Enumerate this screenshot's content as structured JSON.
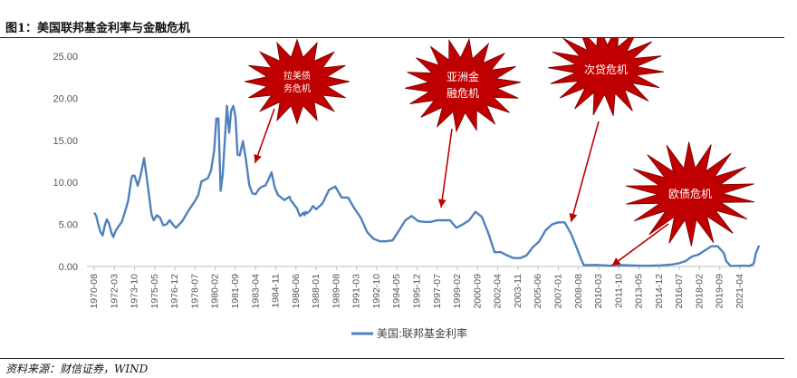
{
  "figure": {
    "title": "图1：美国联邦基金利率与金融危机",
    "source": "资料来源：财信证券，WIND"
  },
  "chart_data": {
    "type": "line",
    "title": "",
    "xlabel": "",
    "ylabel": "",
    "ylim": [
      0,
      25
    ],
    "y_ticks": [
      "0.00",
      "5.00",
      "10.00",
      "15.00",
      "20.00",
      "25.00"
    ],
    "x_ticks": [
      "1970-08",
      "1972-03",
      "1973-10",
      "1975-05",
      "1976-12",
      "1978-07",
      "1980-02",
      "1981-09",
      "1983-04",
      "1984-11",
      "1986-06",
      "1988-01",
      "1989-08",
      "1991-03",
      "1992-10",
      "1994-05",
      "1995-12",
      "1997-07",
      "1999-02",
      "2000-09",
      "2002-04",
      "2003-11",
      "2005-06",
      "2007-01",
      "2008-08",
      "2010-03",
      "2011-10",
      "2013-05",
      "2014-12",
      "2016-07",
      "2018-02",
      "2019-09",
      "2021-04"
    ],
    "legend": {
      "position": "bottom",
      "entries": [
        "美国:联邦基金利率"
      ]
    },
    "colors": {
      "series": "#4f81bd",
      "burst": "#c00000",
      "arrow": "#c00000"
    },
    "series": [
      {
        "name": "美国:联邦基金利率",
        "x": [
          1970.58,
          1970.75,
          1970.92,
          1971.08,
          1971.25,
          1971.42,
          1971.58,
          1971.75,
          1971.92,
          1972.08,
          1972.25,
          1972.5,
          1972.75,
          1973.0,
          1973.25,
          1973.5,
          1973.58,
          1973.75,
          1974.0,
          1974.25,
          1974.5,
          1974.58,
          1974.75,
          1975.0,
          1975.08,
          1975.25,
          1975.5,
          1975.75,
          1976.0,
          1976.25,
          1976.5,
          1976.75,
          1977.0,
          1977.5,
          1978.0,
          1978.5,
          1978.75,
          1979.0,
          1979.5,
          1979.75,
          1980.0,
          1980.17,
          1980.33,
          1980.5,
          1980.67,
          1980.83,
          1981.0,
          1981.17,
          1981.33,
          1981.5,
          1981.67,
          1981.83,
          1982.0,
          1982.25,
          1982.5,
          1982.75,
          1983.0,
          1983.25,
          1983.5,
          1983.75,
          1984.0,
          1984.25,
          1984.5,
          1984.75,
          1985.0,
          1985.5,
          1985.92,
          1986.0,
          1986.5,
          1986.67,
          1986.75,
          1987.0,
          1987.08,
          1987.17,
          1987.25,
          1987.5,
          1987.75,
          1988.0,
          1988.5,
          1989.0,
          1989.5,
          1990.0,
          1990.5,
          1991.0,
          1991.5,
          1992.0,
          1992.5,
          1993.0,
          1993.5,
          1994.0,
          1994.5,
          1995.0,
          1995.5,
          1996.0,
          1996.5,
          1997.0,
          1997.5,
          1998.0,
          1998.5,
          1999.0,
          1999.5,
          2000.0,
          2000.5,
          2001.0,
          2001.5,
          2002.0,
          2002.5,
          2003.0,
          2003.5,
          2004.0,
          2004.5,
          2005.0,
          2005.5,
          2006.0,
          2006.5,
          2007.0,
          2007.5,
          2008.0,
          2008.5,
          2008.75,
          2009.0,
          2010.0,
          2011.0,
          2012.0,
          2013.0,
          2014.0,
          2015.0,
          2015.92,
          2016.5,
          2017.0,
          2017.5,
          2018.0,
          2018.5,
          2019.0,
          2019.5,
          2019.75,
          2020.0,
          2020.17,
          2020.5,
          2021.0,
          2021.5,
          2022.0,
          2022.33,
          2022.5,
          2022.75
        ],
        "values": [
          6.4,
          6.0,
          4.9,
          4.1,
          3.7,
          4.9,
          5.6,
          5.1,
          4.1,
          3.5,
          4.2,
          4.8,
          5.3,
          6.5,
          7.8,
          10.4,
          10.8,
          10.8,
          9.6,
          11.0,
          12.9,
          12.0,
          10.1,
          7.1,
          6.2,
          5.5,
          6.1,
          5.8,
          4.9,
          5.0,
          5.5,
          5.0,
          4.6,
          5.4,
          6.7,
          7.8,
          8.5,
          10.1,
          10.5,
          11.4,
          13.8,
          17.6,
          17.6,
          9.0,
          10.9,
          15.0,
          19.1,
          15.9,
          18.5,
          19.1,
          17.8,
          13.3,
          13.2,
          14.9,
          12.6,
          9.7,
          8.7,
          8.6,
          9.2,
          9.5,
          9.6,
          10.3,
          11.2,
          9.4,
          8.5,
          7.9,
          8.3,
          7.9,
          6.9,
          6.2,
          6.0,
          6.4,
          6.1,
          6.5,
          6.3,
          6.6,
          7.2,
          6.8,
          7.5,
          9.1,
          9.5,
          8.2,
          8.2,
          6.9,
          5.8,
          4.1,
          3.3,
          3.0,
          3.0,
          3.1,
          4.3,
          5.5,
          6.0,
          5.4,
          5.3,
          5.3,
          5.5,
          5.5,
          5.5,
          4.6,
          5.0,
          5.5,
          6.5,
          5.9,
          4.0,
          1.7,
          1.7,
          1.3,
          1.0,
          1.0,
          1.3,
          2.3,
          3.0,
          4.3,
          5.0,
          5.25,
          5.25,
          3.9,
          2.0,
          1.0,
          0.16,
          0.18,
          0.1,
          0.16,
          0.11,
          0.09,
          0.13,
          0.24,
          0.4,
          0.66,
          1.2,
          1.41,
          1.91,
          2.4,
          2.4,
          2.0,
          1.55,
          0.65,
          0.09,
          0.08,
          0.1,
          0.08,
          0.33,
          1.58,
          2.5
        ]
      }
    ],
    "annotations": [
      {
        "label_lines": [
          "拉美债",
          "务危机"
        ],
        "arrow_to": [
          1983.2,
          12.3
        ]
      },
      {
        "label_lines": [
          "亚洲金",
          "融危机"
        ],
        "arrow_to": [
          1997.8,
          7.0
        ]
      },
      {
        "label_lines": [
          "次贷危机"
        ],
        "arrow_to": [
          2008.0,
          5.3
        ]
      },
      {
        "label_lines": [
          "欧债危机"
        ],
        "arrow_to": [
          2011.2,
          0.1
        ]
      }
    ]
  }
}
